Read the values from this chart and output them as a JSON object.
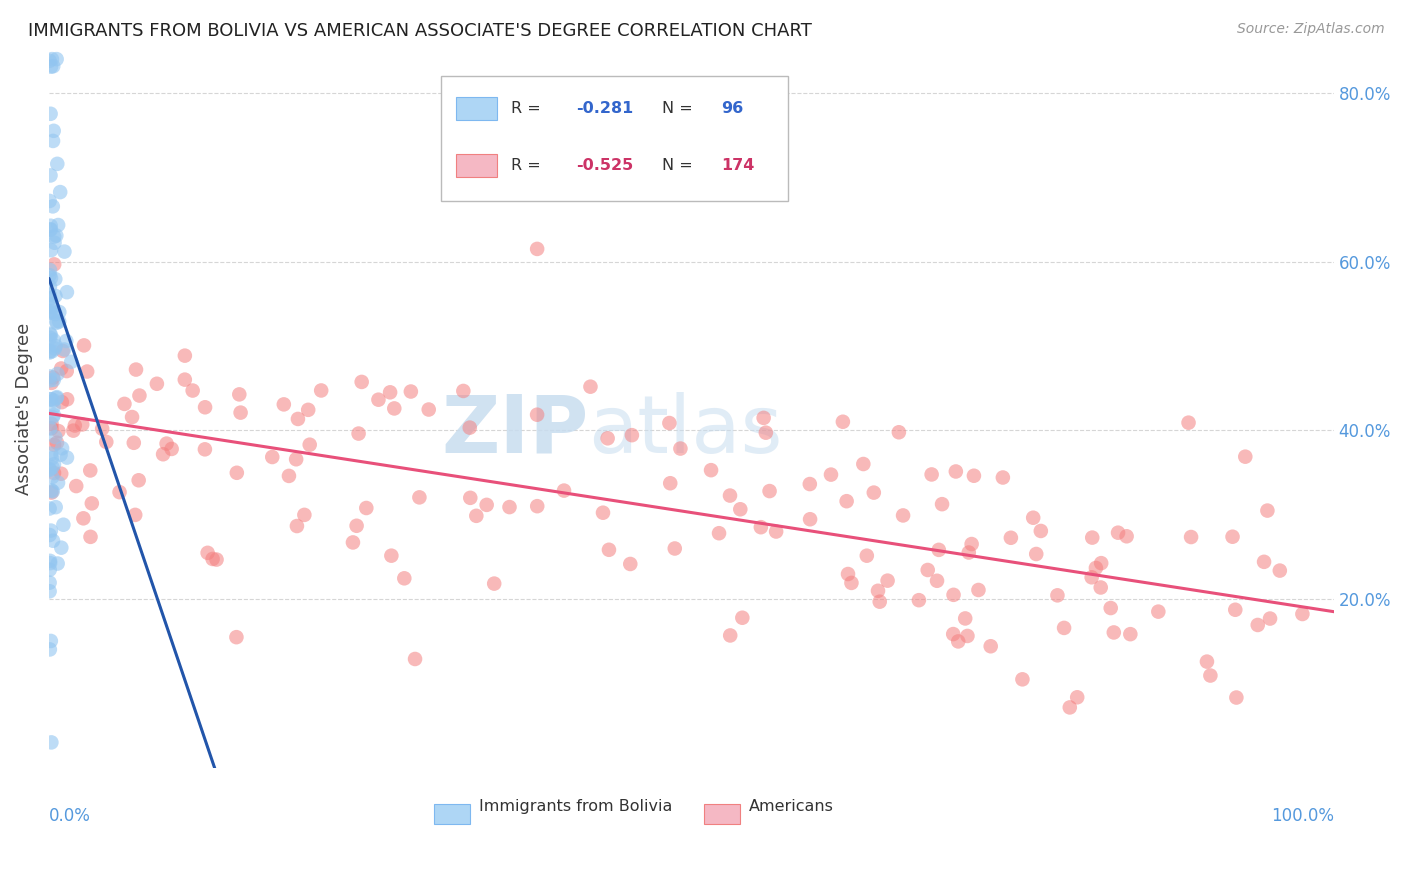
{
  "title": "IMMIGRANTS FROM BOLIVIA VS AMERICAN ASSOCIATE'S DEGREE CORRELATION CHART",
  "source": "Source: ZipAtlas.com",
  "ylabel": "Associate's Degree",
  "legend_blue_r": "-0.281",
  "legend_blue_n": "96",
  "legend_pink_r": "-0.525",
  "legend_pink_n": "174",
  "legend_label_blue": "Immigrants from Bolivia",
  "legend_label_pink": "Americans",
  "blue_color": "#92C5F0",
  "pink_color": "#F48080",
  "trendline_blue_color": "#2255AA",
  "trendline_pink_color": "#E8507A",
  "trendline_blue_dashed_color": "#AACCEE",
  "watermark_zip": "ZIP",
  "watermark_atlas": "atlas",
  "xlim": [
    0.0,
    1.0
  ],
  "ylim": [
    0.0,
    0.85
  ],
  "yticks": [
    0.2,
    0.4,
    0.6,
    0.8
  ],
  "ytick_labels": [
    "20.0%",
    "40.0%",
    "60.0%",
    "80.0%"
  ],
  "blue_seed": 42,
  "pink_seed": 99,
  "title_fontsize": 13,
  "source_fontsize": 10,
  "tick_label_fontsize": 12,
  "ylabel_fontsize": 13
}
